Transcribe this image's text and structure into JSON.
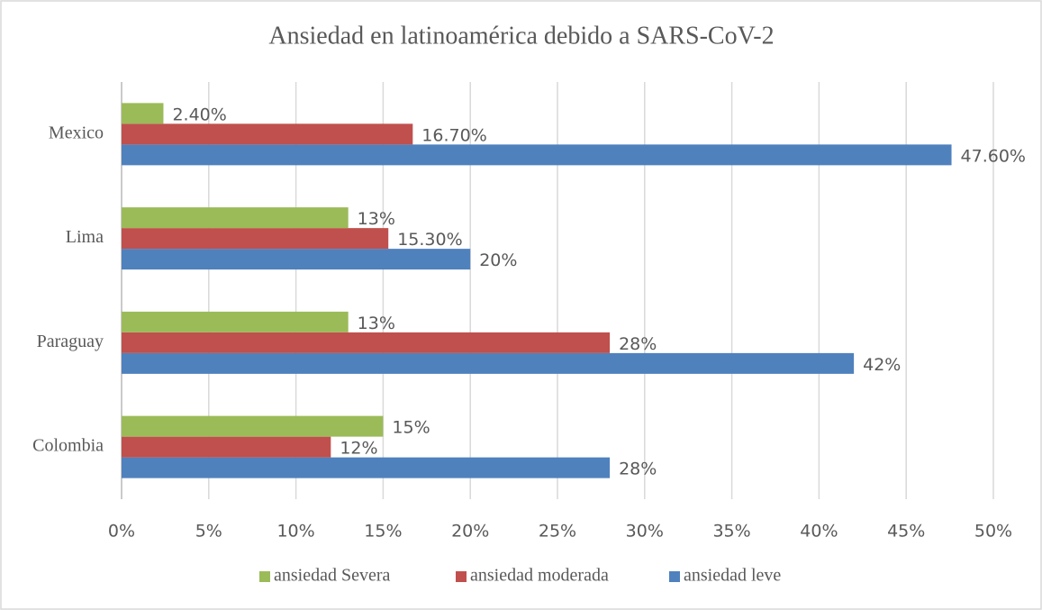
{
  "chart_data": {
    "type": "hbar",
    "title": "Ansiedad en latinoamérica debido a SARS-CoV-2",
    "categories": [
      "Colombia",
      "Paraguay",
      "Lima",
      "Mexico"
    ],
    "series": [
      {
        "name": "ansiedad leve",
        "color": "#4f81bd",
        "values": [
          28,
          42,
          20,
          47.6
        ],
        "value_labels": [
          "28%",
          "42%",
          "20%",
          "47.60%"
        ]
      },
      {
        "name": "ansiedad moderada",
        "color": "#c0504d",
        "values": [
          12,
          28,
          15.3,
          16.7
        ],
        "value_labels": [
          "12%",
          "28%",
          "15.30%",
          "16.70%"
        ]
      },
      {
        "name": "ansiedad Severa",
        "color": "#9bbb59",
        "values": [
          15,
          13,
          13,
          2.4
        ],
        "value_labels": [
          "15%",
          "13%",
          "13%",
          "2.40%"
        ]
      }
    ],
    "xlim": [
      0,
      50
    ],
    "xticks": [
      {
        "value": 0,
        "label": "0%"
      },
      {
        "value": 5,
        "label": "5%"
      },
      {
        "value": 10,
        "label": "10%"
      },
      {
        "value": 15,
        "label": "15%"
      },
      {
        "value": 20,
        "label": "20%"
      },
      {
        "value": 25,
        "label": "25%"
      },
      {
        "value": 30,
        "label": "30%"
      },
      {
        "value": 35,
        "label": "35%"
      },
      {
        "value": 40,
        "label": "40%"
      },
      {
        "value": 45,
        "label": "45%"
      },
      {
        "value": 50,
        "label": "50%"
      }
    ],
    "grid": true,
    "legend": "bottom"
  }
}
